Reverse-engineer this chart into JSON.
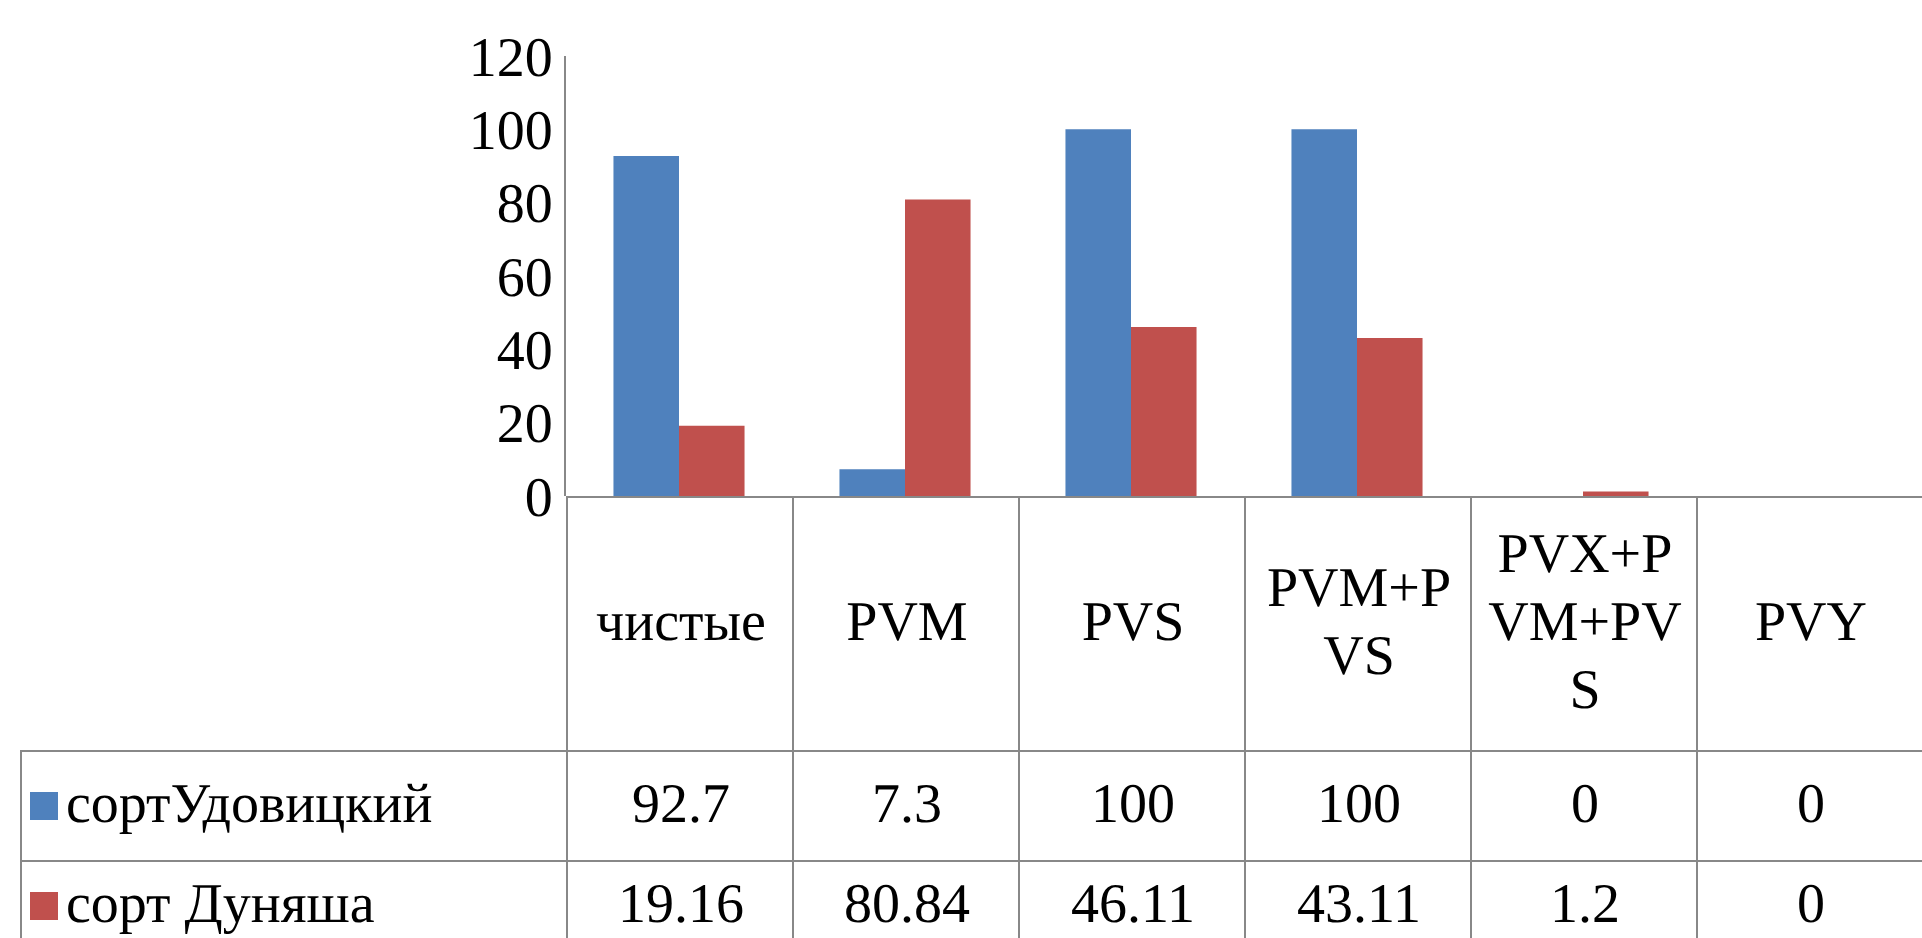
{
  "chart_data": {
    "type": "bar",
    "categories": [
      "чистые",
      "PVM",
      "PVS",
      "PVM+PVS",
      "PVX+PVM+PVS",
      "PVY"
    ],
    "series": [
      {
        "name": "сортУдовицкий",
        "color": "#4f81bd",
        "values": [
          92.7,
          7.3,
          100,
          100,
          0,
          0
        ]
      },
      {
        "name": "сорт Дуняша",
        "color": "#c0504d",
        "values": [
          19.16,
          80.84,
          46.11,
          43.11,
          1.2,
          0
        ]
      }
    ],
    "ylim": [
      0,
      120
    ],
    "yticks": [
      0,
      20,
      40,
      60,
      80,
      100,
      120
    ],
    "grid": false,
    "legend": "bottom",
    "data_labels": true
  }
}
